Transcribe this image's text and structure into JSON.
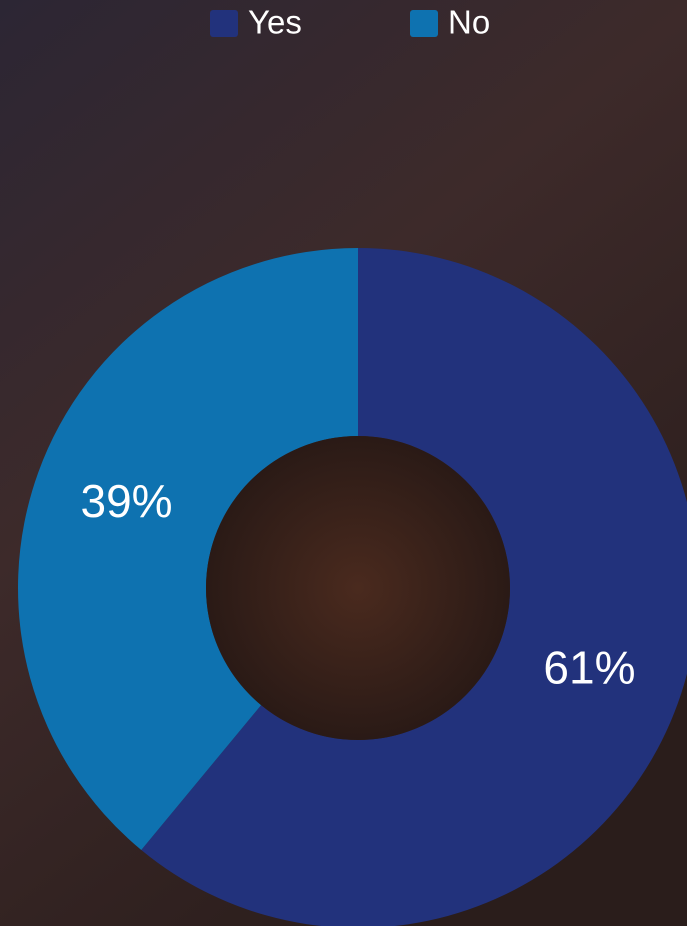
{
  "chart_data": {
    "type": "donut",
    "categories": [
      "Yes",
      "No"
    ],
    "values": [
      61,
      39
    ],
    "value_labels": [
      "61%",
      "39%"
    ],
    "colors": [
      "#22327c",
      "#0e72b0"
    ]
  }
}
